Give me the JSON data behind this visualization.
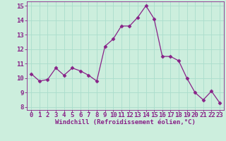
{
  "x": [
    0,
    1,
    2,
    3,
    4,
    5,
    6,
    7,
    8,
    9,
    10,
    11,
    12,
    13,
    14,
    15,
    16,
    17,
    18,
    19,
    20,
    21,
    22,
    23
  ],
  "y": [
    10.3,
    9.8,
    9.9,
    10.7,
    10.2,
    10.7,
    10.5,
    10.2,
    9.8,
    12.2,
    12.7,
    13.6,
    13.6,
    14.2,
    15.0,
    14.1,
    11.5,
    11.5,
    11.2,
    10.0,
    9.0,
    8.5,
    9.1,
    8.3
  ],
  "line_color": "#882288",
  "marker": "D",
  "markersize": 2.5,
  "linewidth": 0.9,
  "xlabel": "Windchill (Refroidissement éolien,°C)",
  "xlabel_fontsize": 6.5,
  "xlabel_color": "#882288",
  "background_color": "#cceedd",
  "grid_color": "#aaddcc",
  "tick_color": "#882288",
  "tick_fontsize": 6.5,
  "ylim": [
    7.8,
    15.3
  ],
  "xlim": [
    -0.5,
    23.5
  ],
  "yticks": [
    8,
    9,
    10,
    11,
    12,
    13,
    14,
    15
  ],
  "xticks": [
    0,
    1,
    2,
    3,
    4,
    5,
    6,
    7,
    8,
    9,
    10,
    11,
    12,
    13,
    14,
    15,
    16,
    17,
    18,
    19,
    20,
    21,
    22,
    23
  ]
}
